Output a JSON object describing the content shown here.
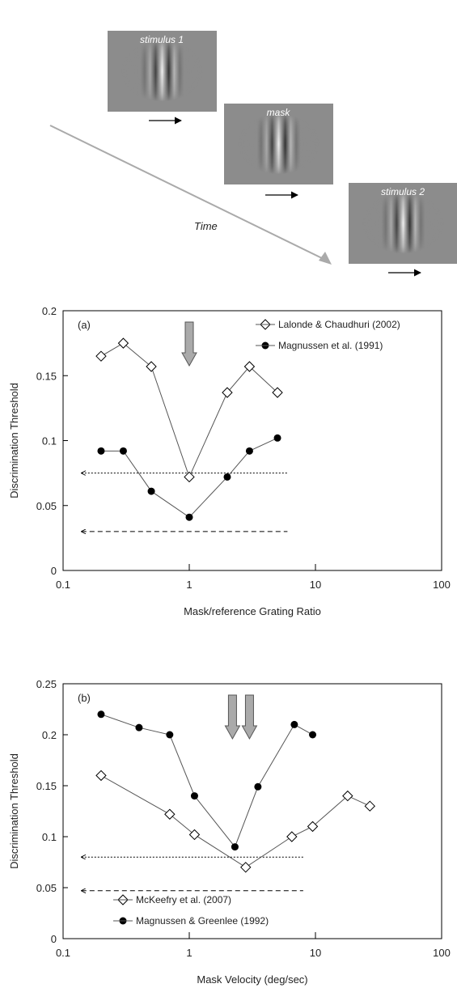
{
  "diagram": {
    "stimulus_1": "stimulus 1",
    "mask": "mask",
    "stimulus_2": "stimulus 2",
    "time_label": "Time"
  },
  "chart_data": [
    {
      "type": "line",
      "panel_label": "(a)",
      "xlabel": "Mask/reference Grating Ratio",
      "ylabel": "Discrimination Threshold",
      "xscale": "log",
      "xlim": [
        0.1,
        100
      ],
      "xticks": [
        0.1,
        1,
        10,
        100
      ],
      "ylim": [
        0,
        0.2
      ],
      "yticks": [
        0,
        0.05,
        0.1,
        0.15,
        0.2
      ],
      "legend": "upper right",
      "series": [
        {
          "name": "Lalonde & Chaudhuri (2002)",
          "color": "#000000",
          "marker": "diamond-open",
          "x": [
            0.2,
            0.3,
            0.5,
            1,
            2,
            3,
            5
          ],
          "values": [
            0.165,
            0.175,
            0.157,
            0.072,
            0.137,
            0.157,
            0.137
          ]
        },
        {
          "name": "Magnussen et al. (1991)",
          "color": "#000000",
          "marker": "circle-filled",
          "x": [
            0.2,
            0.3,
            0.5,
            1,
            2,
            3,
            5
          ],
          "values": [
            0.092,
            0.092,
            0.061,
            0.041,
            0.072,
            0.092,
            0.102
          ]
        }
      ],
      "reference_lines": [
        {
          "y": 0.075,
          "x": [
            0.14,
            6
          ],
          "style": "dotted"
        },
        {
          "y": 0.03,
          "x": [
            0.14,
            6
          ],
          "style": "dashed"
        }
      ],
      "arrows": [
        1
      ]
    },
    {
      "type": "line",
      "panel_label": "(b)",
      "xlabel": "Mask Velocity (deg/sec)",
      "ylabel": "Discrimination Threshold",
      "xscale": "log",
      "xlim": [
        0.1,
        100
      ],
      "xticks": [
        0.1,
        1,
        10,
        100
      ],
      "ylim": [
        0,
        0.25
      ],
      "yticks": [
        0,
        0.05,
        0.1,
        0.15,
        0.2,
        0.25
      ],
      "legend": "lower left",
      "series": [
        {
          "name": "McKeefry et al. (2007)",
          "color": "#000000",
          "marker": "diamond-open",
          "x": [
            0.2,
            0.7,
            1.1,
            2.8,
            6.5,
            9.5,
            18,
            27
          ],
          "values": [
            0.16,
            0.122,
            0.102,
            0.07,
            0.1,
            0.11,
            0.14,
            0.13
          ]
        },
        {
          "name": "Magnussen & Greenlee (1992)",
          "color": "#000000",
          "marker": "circle-filled",
          "x": [
            0.2,
            0.4,
            0.7,
            1.1,
            2.3,
            3.5,
            6.8,
            9.5
          ],
          "values": [
            0.22,
            0.207,
            0.2,
            0.14,
            0.09,
            0.149,
            0.21,
            0.2
          ]
        }
      ],
      "reference_lines": [
        {
          "y": 0.08,
          "x": [
            0.14,
            8
          ],
          "style": "dotted"
        },
        {
          "y": 0.047,
          "x": [
            0.14,
            8
          ],
          "style": "dashed"
        }
      ],
      "arrows": [
        2.2,
        3
      ]
    }
  ]
}
